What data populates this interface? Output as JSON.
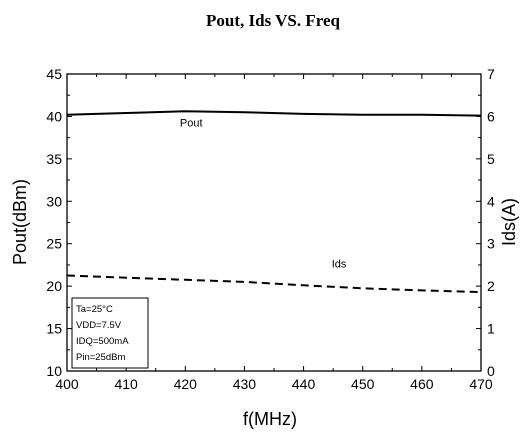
{
  "chart_data": {
    "type": "line",
    "title": "Pout, Ids VS. Freq",
    "xlabel": "f(MHz)",
    "ylabel_left": "Pout(dBm)",
    "ylabel_right": "Ids(A)",
    "xlim": [
      400,
      470
    ],
    "ylim_left": [
      10,
      45
    ],
    "ylim_right": [
      0,
      7
    ],
    "x_ticks": [
      400,
      410,
      420,
      430,
      440,
      450,
      460,
      470
    ],
    "y_left_ticks": [
      10,
      15,
      20,
      25,
      30,
      35,
      40,
      45
    ],
    "y_right_ticks": [
      0,
      1,
      2,
      3,
      4,
      5,
      6,
      7
    ],
    "grid": false,
    "series": [
      {
        "name": "Pout",
        "axis": "left",
        "style": "solid",
        "color": "#000000",
        "x": [
          400,
          410,
          420,
          430,
          440,
          450,
          460,
          470
        ],
        "values": [
          40.2,
          40.4,
          40.6,
          40.5,
          40.3,
          40.2,
          40.2,
          40.1
        ]
      },
      {
        "name": "Ids",
        "axis": "right",
        "style": "dashed",
        "color": "#000000",
        "x": [
          400,
          410,
          420,
          430,
          440,
          450,
          460,
          470
        ],
        "values": [
          2.25,
          2.2,
          2.15,
          2.1,
          2.02,
          1.95,
          1.9,
          1.86
        ]
      }
    ],
    "annotations": [
      {
        "text": "Pout",
        "x": 421,
        "y_left": 38.8
      },
      {
        "text": "Ids",
        "x": 446,
        "y_left": 22.2
      }
    ],
    "conditions_box": {
      "position": "bottom-left",
      "lines": [
        "Ta=25°C",
        "VDD=7.5V",
        "IDQ=500mA",
        "Pin=25dBm"
      ]
    }
  }
}
